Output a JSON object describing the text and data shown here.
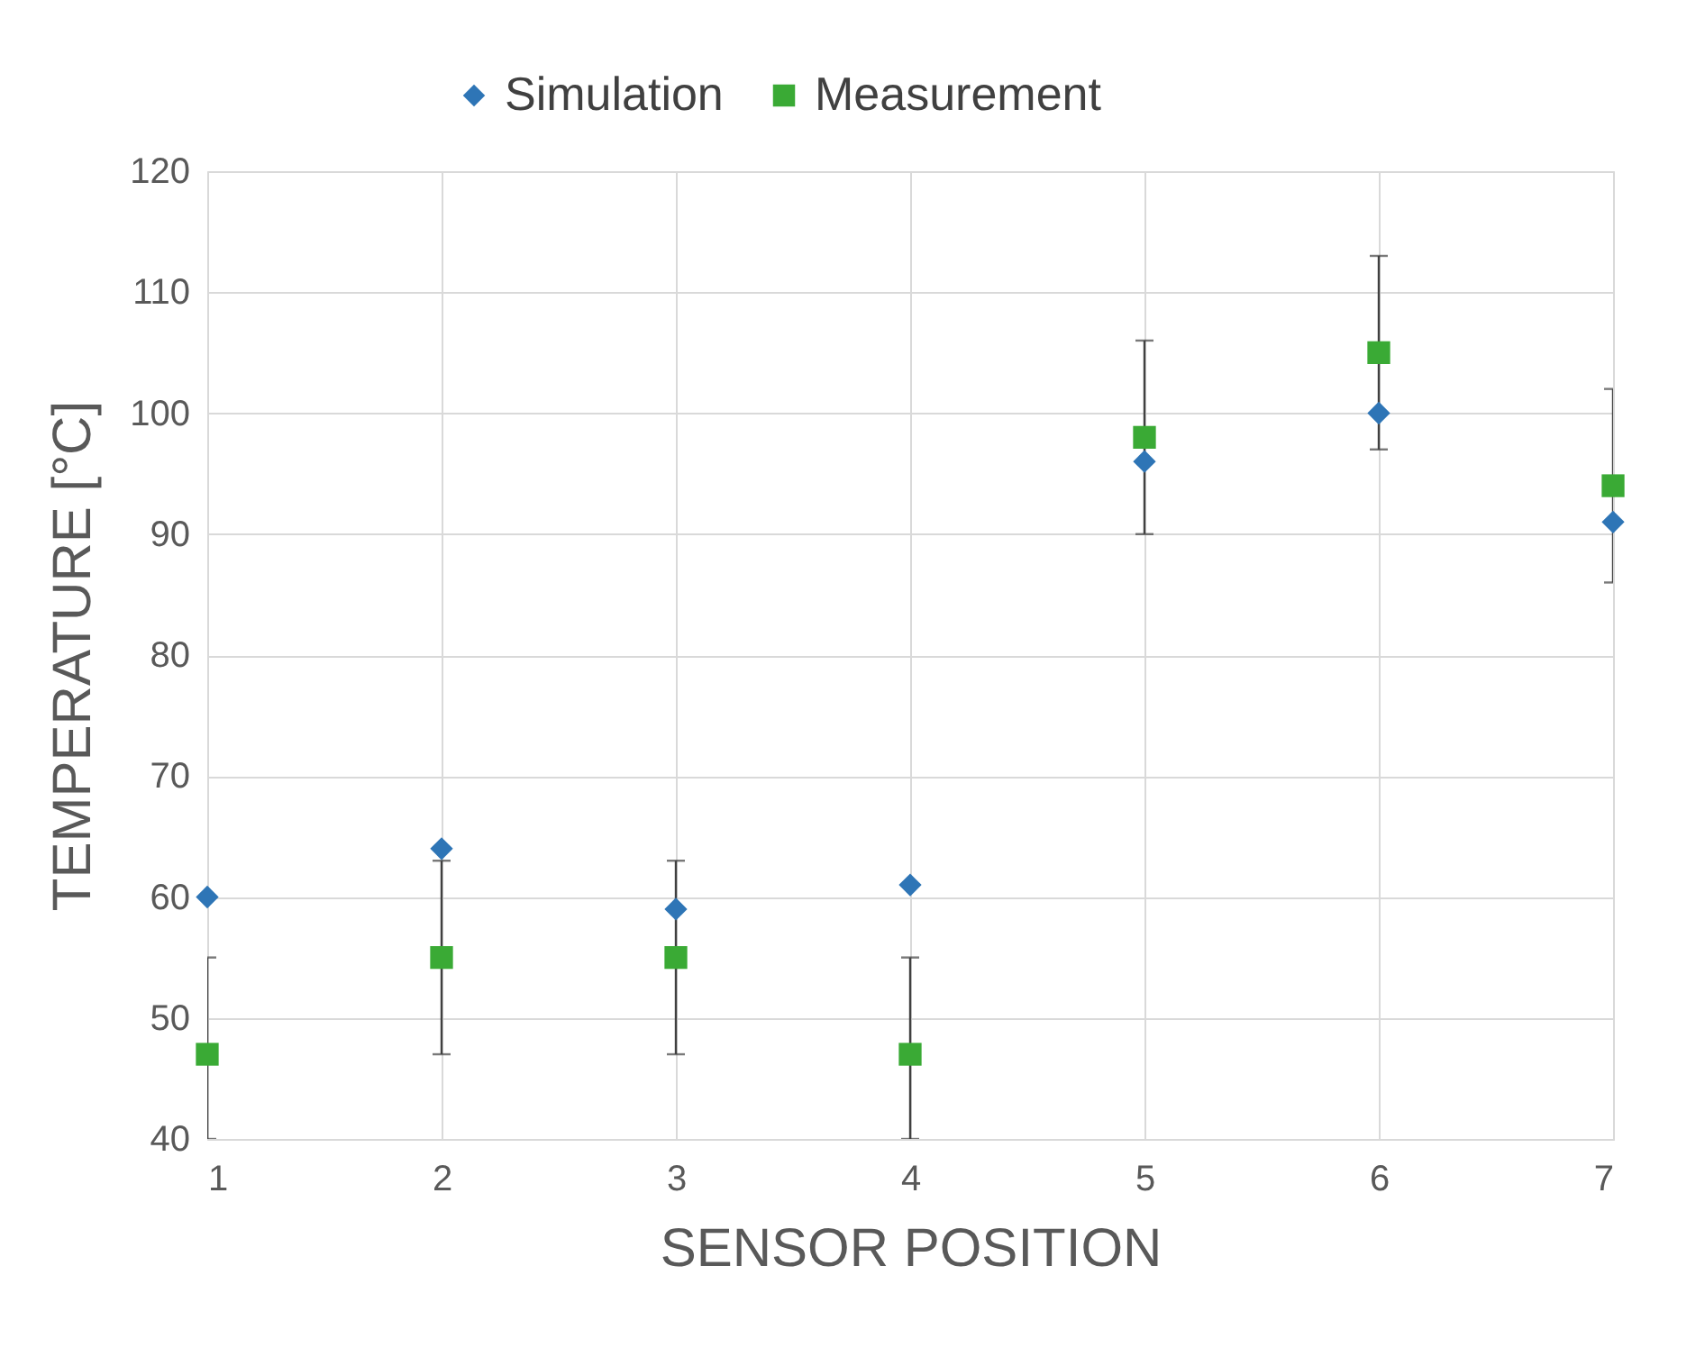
{
  "chart_data": {
    "type": "scatter",
    "xlabel": "SENSOR POSITION",
    "ylabel": "TEMPERATURE [°C]",
    "x": [
      1,
      2,
      3,
      4,
      5,
      6,
      7
    ],
    "series": [
      {
        "name": "Simulation",
        "color": "#2e75b6",
        "marker": "diamond",
        "values": [
          60,
          64,
          59,
          61,
          96,
          100,
          91
        ]
      },
      {
        "name": "Measurement",
        "color": "#3aaa35",
        "marker": "square",
        "values": [
          47,
          55,
          55,
          47,
          98,
          105,
          94
        ],
        "errors": [
          [
            40,
            55
          ],
          [
            47,
            63
          ],
          [
            47,
            63
          ],
          [
            40,
            55
          ],
          [
            90,
            106
          ],
          [
            97,
            113
          ],
          [
            86,
            102
          ]
        ]
      }
    ],
    "xlim": [
      1,
      7
    ],
    "xticks": [
      1,
      2,
      3,
      4,
      5,
      6,
      7
    ],
    "ylim": [
      40,
      120
    ],
    "yticks": [
      40,
      50,
      60,
      70,
      80,
      90,
      100,
      110,
      120
    ],
    "grid": true,
    "legend": "top"
  }
}
